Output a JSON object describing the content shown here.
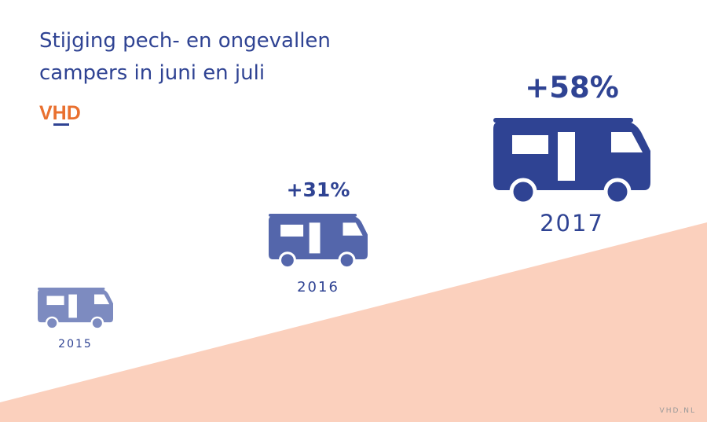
{
  "title": [
    "Stijging pech- en ongevallen",
    "campers in juni en juli"
  ],
  "logo": "VHD",
  "items": [
    {
      "year": "2015"
    },
    {
      "year": "2016",
      "change": "+31%"
    },
    {
      "year": "2017",
      "change": "+58%"
    }
  ],
  "footer": "VHD.NL"
}
